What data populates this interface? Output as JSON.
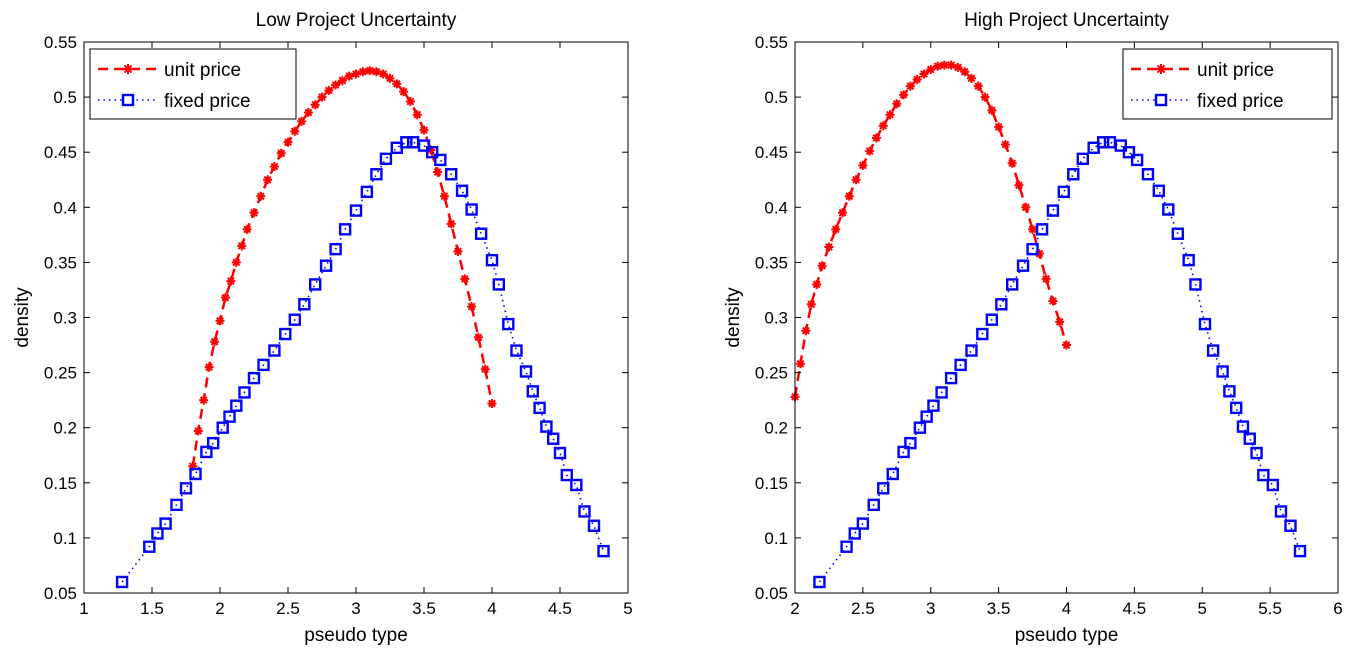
{
  "chart_data": [
    {
      "type": "line",
      "title": "Low Project Uncertainty",
      "xlabel": "pseudo type",
      "ylabel": "density",
      "xlim": [
        1,
        5
      ],
      "ylim": [
        0.05,
        0.55
      ],
      "xticks": [
        "1",
        "1.5",
        "2",
        "2.5",
        "3",
        "3.5",
        "4",
        "4.5",
        "5"
      ],
      "yticks": [
        "0.05",
        "0.1",
        "0.15",
        "0.2",
        "0.25",
        "0.3",
        "0.35",
        "0.4",
        "0.45",
        "0.5",
        "0.55"
      ],
      "grid": false,
      "legend_position": "top-left",
      "series": [
        {
          "name": "unit price",
          "color": "#ff0000",
          "marker": "asterisk",
          "line": "dashed",
          "x": [
            1.8,
            1.84,
            1.88,
            1.92,
            1.96,
            2.0,
            2.04,
            2.08,
            2.12,
            2.16,
            2.2,
            2.25,
            2.3,
            2.35,
            2.4,
            2.45,
            2.5,
            2.55,
            2.6,
            2.65,
            2.7,
            2.75,
            2.8,
            2.85,
            2.9,
            2.95,
            3.0,
            3.05,
            3.1,
            3.15,
            3.2,
            3.25,
            3.3,
            3.35,
            3.4,
            3.45,
            3.5,
            3.55,
            3.6,
            3.65,
            3.7,
            3.75,
            3.8,
            3.85,
            3.9,
            3.95,
            4.0
          ],
          "y": [
            0.165,
            0.197,
            0.225,
            0.255,
            0.278,
            0.297,
            0.318,
            0.333,
            0.35,
            0.365,
            0.38,
            0.395,
            0.41,
            0.425,
            0.437,
            0.449,
            0.459,
            0.469,
            0.478,
            0.486,
            0.493,
            0.5,
            0.506,
            0.511,
            0.515,
            0.519,
            0.521,
            0.523,
            0.524,
            0.523,
            0.521,
            0.517,
            0.512,
            0.505,
            0.496,
            0.484,
            0.47,
            0.452,
            0.432,
            0.41,
            0.385,
            0.36,
            0.335,
            0.31,
            0.282,
            0.253,
            0.222
          ]
        },
        {
          "name": "fixed price",
          "color": "#0000ff",
          "marker": "square",
          "line": "dotted",
          "x": [
            1.28,
            1.48,
            1.54,
            1.6,
            1.68,
            1.75,
            1.82,
            1.9,
            1.95,
            2.02,
            2.07,
            2.12,
            2.18,
            2.25,
            2.32,
            2.4,
            2.48,
            2.55,
            2.62,
            2.7,
            2.78,
            2.85,
            2.92,
            3.0,
            3.08,
            3.15,
            3.22,
            3.3,
            3.37,
            3.42,
            3.5,
            3.56,
            3.62,
            3.7,
            3.78,
            3.85,
            3.92,
            4.0,
            4.05,
            4.12,
            4.18,
            4.25,
            4.3,
            4.35,
            4.4,
            4.45,
            4.5,
            4.55,
            4.62,
            4.68,
            4.75,
            4.82
          ],
          "y": [
            0.06,
            0.092,
            0.104,
            0.113,
            0.13,
            0.145,
            0.158,
            0.178,
            0.186,
            0.2,
            0.21,
            0.22,
            0.232,
            0.245,
            0.257,
            0.27,
            0.285,
            0.298,
            0.312,
            0.33,
            0.347,
            0.362,
            0.38,
            0.397,
            0.414,
            0.43,
            0.444,
            0.454,
            0.459,
            0.459,
            0.456,
            0.45,
            0.443,
            0.43,
            0.415,
            0.398,
            0.376,
            0.352,
            0.33,
            0.294,
            0.27,
            0.251,
            0.233,
            0.218,
            0.201,
            0.19,
            0.177,
            0.157,
            0.148,
            0.124,
            0.111,
            0.088
          ]
        }
      ]
    },
    {
      "type": "line",
      "title": "High Project Uncertainty",
      "xlabel": "pseudo type",
      "ylabel": "density",
      "xlim": [
        2,
        6
      ],
      "ylim": [
        0.05,
        0.55
      ],
      "xticks": [
        "2",
        "2.5",
        "3",
        "3.5",
        "4",
        "4.5",
        "5",
        "5.5",
        "6"
      ],
      "yticks": [
        "0.05",
        "0.1",
        "0.15",
        "0.2",
        "0.25",
        "0.3",
        "0.35",
        "0.4",
        "0.45",
        "0.5",
        "0.55"
      ],
      "grid": false,
      "legend_position": "top-right",
      "series": [
        {
          "name": "unit price",
          "color": "#ff0000",
          "marker": "asterisk",
          "line": "dashed",
          "x": [
            2.0,
            2.04,
            2.08,
            2.12,
            2.16,
            2.2,
            2.25,
            2.3,
            2.35,
            2.4,
            2.45,
            2.5,
            2.55,
            2.6,
            2.65,
            2.7,
            2.75,
            2.8,
            2.85,
            2.9,
            2.95,
            3.0,
            3.05,
            3.1,
            3.15,
            3.2,
            3.25,
            3.3,
            3.35,
            3.4,
            3.45,
            3.5,
            3.55,
            3.6,
            3.65,
            3.7,
            3.75,
            3.8,
            3.85,
            3.9,
            3.95,
            4.0
          ],
          "y": [
            0.228,
            0.258,
            0.288,
            0.312,
            0.33,
            0.347,
            0.364,
            0.38,
            0.395,
            0.41,
            0.425,
            0.438,
            0.451,
            0.463,
            0.474,
            0.484,
            0.494,
            0.502,
            0.51,
            0.516,
            0.521,
            0.525,
            0.528,
            0.529,
            0.529,
            0.527,
            0.523,
            0.517,
            0.51,
            0.5,
            0.488,
            0.473,
            0.457,
            0.44,
            0.42,
            0.4,
            0.38,
            0.358,
            0.335,
            0.315,
            0.296,
            0.275
          ]
        },
        {
          "name": "fixed price",
          "color": "#0000ff",
          "marker": "square",
          "line": "dotted",
          "x": [
            2.18,
            2.38,
            2.44,
            2.5,
            2.58,
            2.65,
            2.72,
            2.8,
            2.85,
            2.92,
            2.97,
            3.02,
            3.08,
            3.15,
            3.22,
            3.3,
            3.38,
            3.45,
            3.52,
            3.6,
            3.68,
            3.75,
            3.82,
            3.9,
            3.98,
            4.05,
            4.12,
            4.2,
            4.27,
            4.32,
            4.4,
            4.46,
            4.52,
            4.6,
            4.68,
            4.75,
            4.82,
            4.9,
            4.95,
            5.02,
            5.08,
            5.15,
            5.2,
            5.25,
            5.3,
            5.35,
            5.4,
            5.45,
            5.52,
            5.58,
            5.65,
            5.72
          ],
          "y": [
            0.06,
            0.092,
            0.104,
            0.113,
            0.13,
            0.145,
            0.158,
            0.178,
            0.186,
            0.2,
            0.21,
            0.22,
            0.232,
            0.245,
            0.257,
            0.27,
            0.285,
            0.298,
            0.312,
            0.33,
            0.347,
            0.362,
            0.38,
            0.397,
            0.414,
            0.43,
            0.444,
            0.454,
            0.459,
            0.459,
            0.456,
            0.45,
            0.443,
            0.43,
            0.415,
            0.398,
            0.376,
            0.352,
            0.33,
            0.294,
            0.27,
            0.251,
            0.233,
            0.218,
            0.201,
            0.19,
            0.177,
            0.157,
            0.148,
            0.124,
            0.111,
            0.088
          ]
        }
      ]
    }
  ]
}
